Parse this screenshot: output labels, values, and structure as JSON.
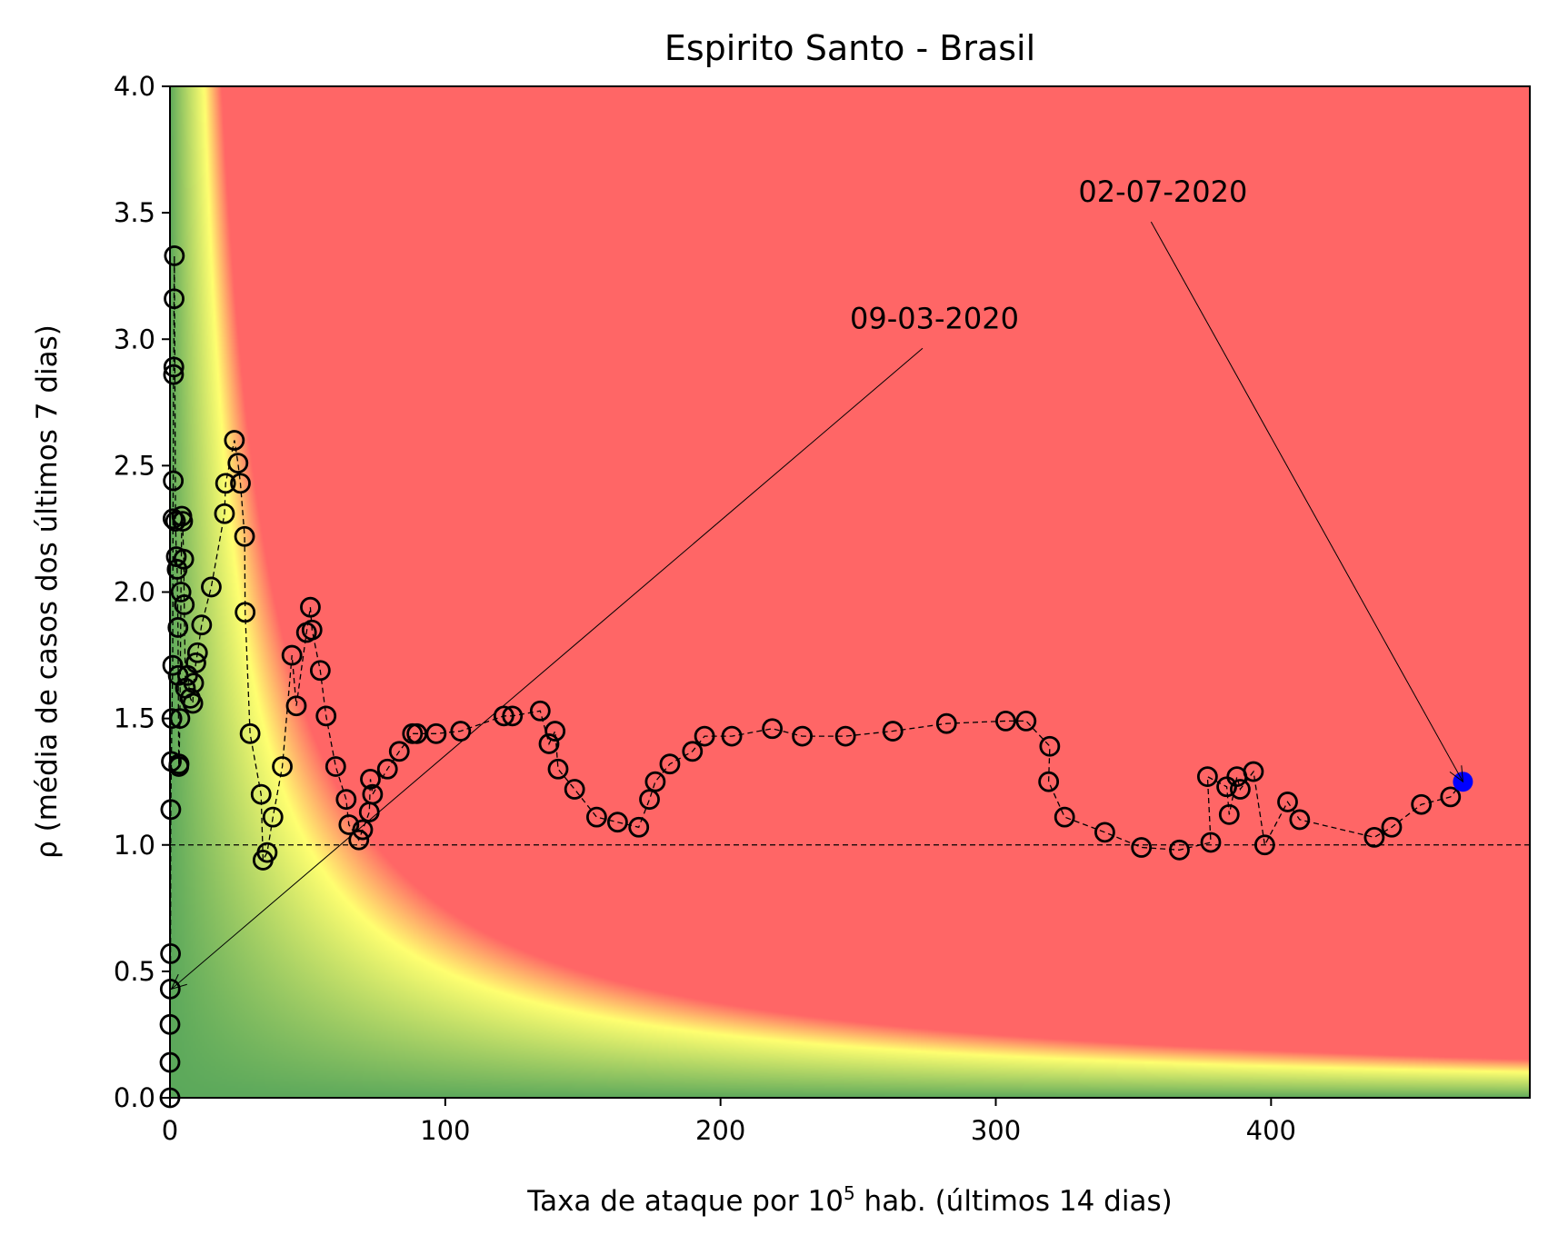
{
  "chart_data": {
    "type": "scatter",
    "title": "Espirito Santo - Brasil",
    "xlabel_main": "Taxa de ataque por 10",
    "xlabel_sup": "5",
    "xlabel_rest": " hab. (últimos 14 dias)",
    "ylabel": "ρ (média de casos dos últimos 7 dias)",
    "xlim": [
      0,
      494
    ],
    "ylim": [
      0,
      4
    ],
    "xticks": [
      0,
      100,
      200,
      300,
      400
    ],
    "xtick_labels": [
      "0",
      "100",
      "200",
      "300",
      "400"
    ],
    "yticks": [
      0,
      0.5,
      1,
      1.5,
      2,
      2.5,
      3,
      3.5,
      4
    ],
    "ytick_labels": [
      "0.0",
      "0.5",
      "1.0",
      "1.5",
      "2.0",
      "2.5",
      "3.0",
      "3.5",
      "4.0"
    ],
    "reference_line_y": 1.0,
    "background": "risk heatmap: green (low) → yellow → red (high) as attack rate × ρ increases",
    "colors": {
      "green": "#5aa75a",
      "yellow": "#ffff70",
      "red": "#ff6666",
      "marker_edge": "#000000",
      "last_point": "#0000ff"
    },
    "points": [
      [
        0.0,
        0.0
      ],
      [
        0.0,
        0.14
      ],
      [
        0.0,
        0.29
      ],
      [
        0.1,
        0.43
      ],
      [
        0.2,
        0.57
      ],
      [
        0.3,
        1.14
      ],
      [
        0.5,
        1.33
      ],
      [
        0.7,
        1.5
      ],
      [
        1.0,
        1.71
      ],
      [
        1.1,
        2.29
      ],
      [
        1.2,
        2.44
      ],
      [
        1.3,
        2.86
      ],
      [
        1.4,
        2.89
      ],
      [
        1.5,
        3.16
      ],
      [
        1.6,
        3.33
      ],
      [
        2.0,
        2.28
      ],
      [
        2.3,
        2.14
      ],
      [
        2.6,
        2.09
      ],
      [
        2.9,
        1.86
      ],
      [
        3.0,
        1.67
      ],
      [
        3.2,
        1.31
      ],
      [
        3.3,
        1.32
      ],
      [
        3.6,
        1.5
      ],
      [
        4.0,
        2.0
      ],
      [
        4.3,
        2.3
      ],
      [
        4.6,
        2.28
      ],
      [
        5.0,
        2.13
      ],
      [
        5.2,
        1.95
      ],
      [
        5.6,
        1.62
      ],
      [
        6.4,
        1.67
      ],
      [
        7.4,
        1.58
      ],
      [
        8.3,
        1.56
      ],
      [
        8.6,
        1.64
      ],
      [
        9.4,
        1.72
      ],
      [
        10.0,
        1.76
      ],
      [
        11.5,
        1.87
      ],
      [
        15.0,
        2.02
      ],
      [
        19.8,
        2.31
      ],
      [
        20.2,
        2.43
      ],
      [
        23.4,
        2.6
      ],
      [
        24.7,
        2.51
      ],
      [
        25.6,
        2.43
      ],
      [
        27.1,
        2.22
      ],
      [
        27.3,
        1.92
      ],
      [
        29.1,
        1.44
      ],
      [
        33.1,
        1.2
      ],
      [
        33.8,
        0.94
      ],
      [
        35.3,
        0.97
      ],
      [
        37.4,
        1.11
      ],
      [
        40.8,
        1.31
      ],
      [
        44.3,
        1.75
      ],
      [
        45.9,
        1.55
      ],
      [
        49.6,
        1.84
      ],
      [
        51.0,
        1.94
      ],
      [
        51.6,
        1.85
      ],
      [
        54.6,
        1.69
      ],
      [
        56.7,
        1.51
      ],
      [
        60.2,
        1.31
      ],
      [
        64.0,
        1.18
      ],
      [
        65.0,
        1.08
      ],
      [
        68.6,
        1.02
      ],
      [
        70.0,
        1.06
      ],
      [
        72.4,
        1.13
      ],
      [
        72.8,
        1.26
      ],
      [
        73.6,
        1.2
      ],
      [
        79.0,
        1.3
      ],
      [
        83.3,
        1.37
      ],
      [
        88.1,
        1.44
      ],
      [
        89.7,
        1.44
      ],
      [
        96.7,
        1.44
      ],
      [
        105.6,
        1.45
      ],
      [
        121.3,
        1.51
      ],
      [
        124.4,
        1.51
      ],
      [
        134.5,
        1.53
      ],
      [
        137.7,
        1.4
      ],
      [
        139.9,
        1.45
      ],
      [
        141.0,
        1.3
      ],
      [
        147.0,
        1.22
      ],
      [
        155.0,
        1.11
      ],
      [
        162.6,
        1.09
      ],
      [
        170.3,
        1.07
      ],
      [
        174.2,
        1.18
      ],
      [
        176.3,
        1.25
      ],
      [
        181.6,
        1.32
      ],
      [
        189.8,
        1.37
      ],
      [
        194.2,
        1.43
      ],
      [
        204.1,
        1.43
      ],
      [
        218.8,
        1.46
      ],
      [
        229.7,
        1.43
      ],
      [
        245.4,
        1.43
      ],
      [
        262.6,
        1.45
      ],
      [
        282.1,
        1.48
      ],
      [
        303.6,
        1.49
      ],
      [
        311.0,
        1.49
      ],
      [
        319.6,
        1.39
      ],
      [
        319.2,
        1.25
      ],
      [
        325.0,
        1.11
      ],
      [
        339.6,
        1.05
      ],
      [
        352.9,
        0.99
      ],
      [
        366.7,
        0.98
      ],
      [
        378.1,
        1.01
      ],
      [
        376.9,
        1.27
      ],
      [
        383.9,
        1.23
      ],
      [
        384.8,
        1.12
      ],
      [
        387.6,
        1.27
      ],
      [
        388.8,
        1.22
      ],
      [
        393.6,
        1.29
      ],
      [
        397.7,
        1.0
      ],
      [
        406.0,
        1.17
      ],
      [
        410.4,
        1.1
      ],
      [
        437.5,
        1.03
      ],
      [
        443.8,
        1.07
      ],
      [
        454.6,
        1.16
      ],
      [
        465.2,
        1.19
      ]
    ],
    "last_point": [
      469.7,
      1.25
    ],
    "annotations": [
      {
        "text": "09-03-2020",
        "xy": [
          0.5,
          0.43
        ],
        "xytext": [
          247,
          3.0
        ]
      },
      {
        "text": "02-07-2020",
        "xy": [
          469.7,
          1.25
        ],
        "xytext": [
          330,
          3.5
        ]
      }
    ]
  }
}
